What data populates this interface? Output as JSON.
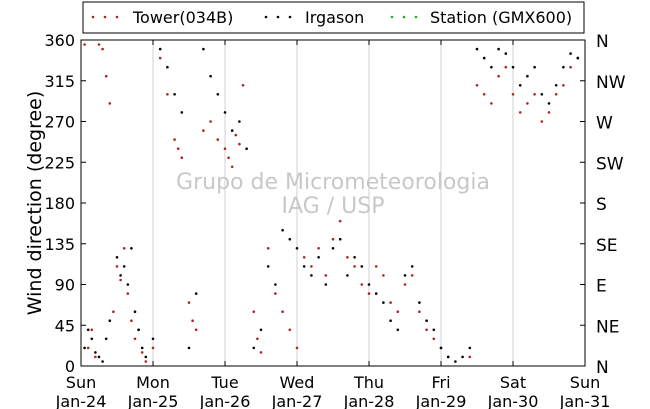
{
  "chart_data": {
    "type": "scatter",
    "ylabel": "Wind direction (degree)",
    "watermark": [
      "Grupo de Micrometeorologia",
      "IAG / USP"
    ],
    "ylim": [
      0,
      360
    ],
    "y_ticks": [
      "0",
      "45",
      "90",
      "135",
      "180",
      "225",
      "270",
      "315",
      "360"
    ],
    "y_ticks_right": [
      "N",
      "NE",
      "E",
      "SE",
      "S",
      "SW",
      "W",
      "NW",
      "N"
    ],
    "x_ticks": [
      {
        "day": "Sun",
        "date": "Jan-24"
      },
      {
        "day": "Mon",
        "date": "Jan-25"
      },
      {
        "day": "Tue",
        "date": "Jan-26"
      },
      {
        "day": "Wed",
        "date": "Jan-27"
      },
      {
        "day": "Thu",
        "date": "Jan-28"
      },
      {
        "day": "Fri",
        "date": "Jan-29"
      },
      {
        "day": "Sat",
        "date": "Jan-30"
      },
      {
        "day": "Sun",
        "date": "Jan-31"
      }
    ],
    "xlim_days": [
      0,
      7
    ],
    "grid": "vertical",
    "legend_position": "top",
    "series": [
      {
        "name": "Tower(034B)",
        "color": "#b22222",
        "points": [
          [
            0.05,
            355
          ],
          [
            0.1,
            20
          ],
          [
            0.15,
            40
          ],
          [
            0.2,
            10
          ],
          [
            0.25,
            355
          ],
          [
            0.3,
            350
          ],
          [
            0.35,
            320
          ],
          [
            0.4,
            290
          ],
          [
            0.45,
            60
          ],
          [
            0.5,
            110
          ],
          [
            0.55,
            95
          ],
          [
            0.6,
            130
          ],
          [
            0.65,
            80
          ],
          [
            0.7,
            50
          ],
          [
            0.75,
            30
          ],
          [
            0.8,
            40
          ],
          [
            0.85,
            15
          ],
          [
            0.9,
            5
          ],
          [
            1.0,
            20
          ],
          [
            1.1,
            340
          ],
          [
            1.2,
            300
          ],
          [
            1.3,
            250
          ],
          [
            1.35,
            240
          ],
          [
            1.4,
            230
          ],
          [
            1.5,
            70
          ],
          [
            1.55,
            50
          ],
          [
            1.6,
            40
          ],
          [
            1.7,
            260
          ],
          [
            1.8,
            270
          ],
          [
            1.9,
            250
          ],
          [
            2.0,
            240
          ],
          [
            2.05,
            230
          ],
          [
            2.1,
            220
          ],
          [
            2.15,
            255
          ],
          [
            2.2,
            245
          ],
          [
            2.25,
            310
          ],
          [
            2.4,
            60
          ],
          [
            2.45,
            30
          ],
          [
            2.5,
            15
          ],
          [
            2.6,
            130
          ],
          [
            2.7,
            80
          ],
          [
            2.8,
            60
          ],
          [
            2.9,
            40
          ],
          [
            3.0,
            20
          ],
          [
            3.1,
            120
          ],
          [
            3.2,
            110
          ],
          [
            3.3,
            130
          ],
          [
            3.4,
            100
          ],
          [
            3.5,
            140
          ],
          [
            3.6,
            160
          ],
          [
            3.7,
            120
          ],
          [
            3.8,
            110
          ],
          [
            3.9,
            90
          ],
          [
            4.0,
            80
          ],
          [
            4.1,
            110
          ],
          [
            4.2,
            100
          ],
          [
            4.3,
            70
          ],
          [
            4.4,
            60
          ],
          [
            4.5,
            90
          ],
          [
            4.6,
            100
          ],
          [
            4.7,
            60
          ],
          [
            4.8,
            40
          ],
          [
            4.9,
            30
          ],
          [
            5.0,
            20
          ],
          [
            5.1,
            10
          ],
          [
            5.4,
            10
          ],
          [
            5.5,
            310
          ],
          [
            5.6,
            300
          ],
          [
            5.7,
            290
          ],
          [
            5.8,
            320
          ],
          [
            5.9,
            330
          ],
          [
            6.0,
            300
          ],
          [
            6.1,
            280
          ],
          [
            6.2,
            290
          ],
          [
            6.3,
            300
          ],
          [
            6.4,
            270
          ],
          [
            6.5,
            280
          ],
          [
            6.6,
            300
          ],
          [
            6.7,
            310
          ],
          [
            6.8,
            330
          ],
          [
            6.9,
            340
          ]
        ]
      },
      {
        "name": "Irgason",
        "color": "#000000",
        "points": [
          [
            0.05,
            20
          ],
          [
            0.1,
            40
          ],
          [
            0.15,
            30
          ],
          [
            0.2,
            15
          ],
          [
            0.25,
            10
          ],
          [
            0.3,
            5
          ],
          [
            0.35,
            30
          ],
          [
            0.4,
            50
          ],
          [
            0.5,
            120
          ],
          [
            0.55,
            100
          ],
          [
            0.6,
            110
          ],
          [
            0.65,
            90
          ],
          [
            0.7,
            130
          ],
          [
            0.75,
            60
          ],
          [
            0.8,
            40
          ],
          [
            0.85,
            20
          ],
          [
            0.9,
            10
          ],
          [
            1.0,
            30
          ],
          [
            1.1,
            350
          ],
          [
            1.2,
            330
          ],
          [
            1.3,
            300
          ],
          [
            1.4,
            280
          ],
          [
            1.5,
            20
          ],
          [
            1.6,
            80
          ],
          [
            1.7,
            350
          ],
          [
            1.8,
            320
          ],
          [
            1.9,
            300
          ],
          [
            2.0,
            280
          ],
          [
            2.1,
            260
          ],
          [
            2.2,
            270
          ],
          [
            2.3,
            240
          ],
          [
            2.4,
            20
          ],
          [
            2.5,
            40
          ],
          [
            2.6,
            110
          ],
          [
            2.7,
            90
          ],
          [
            2.8,
            150
          ],
          [
            2.9,
            140
          ],
          [
            3.0,
            130
          ],
          [
            3.1,
            110
          ],
          [
            3.2,
            100
          ],
          [
            3.3,
            120
          ],
          [
            3.4,
            90
          ],
          [
            3.5,
            130
          ],
          [
            3.6,
            140
          ],
          [
            3.7,
            100
          ],
          [
            3.8,
            120
          ],
          [
            3.9,
            110
          ],
          [
            4.0,
            90
          ],
          [
            4.1,
            80
          ],
          [
            4.2,
            70
          ],
          [
            4.3,
            50
          ],
          [
            4.4,
            40
          ],
          [
            4.5,
            100
          ],
          [
            4.6,
            110
          ],
          [
            4.7,
            70
          ],
          [
            4.8,
            50
          ],
          [
            4.9,
            40
          ],
          [
            5.0,
            20
          ],
          [
            5.1,
            10
          ],
          [
            5.2,
            5
          ],
          [
            5.3,
            10
          ],
          [
            5.4,
            20
          ],
          [
            5.5,
            350
          ],
          [
            5.6,
            340
          ],
          [
            5.7,
            330
          ],
          [
            5.8,
            350
          ],
          [
            5.9,
            345
          ],
          [
            6.0,
            330
          ],
          [
            6.1,
            310
          ],
          [
            6.2,
            320
          ],
          [
            6.3,
            330
          ],
          [
            6.4,
            300
          ],
          [
            6.5,
            290
          ],
          [
            6.6,
            310
          ],
          [
            6.7,
            330
          ],
          [
            6.8,
            345
          ],
          [
            6.9,
            340
          ]
        ]
      },
      {
        "name": "Station (GMX600)",
        "color": "#22aa22",
        "points": []
      }
    ]
  }
}
